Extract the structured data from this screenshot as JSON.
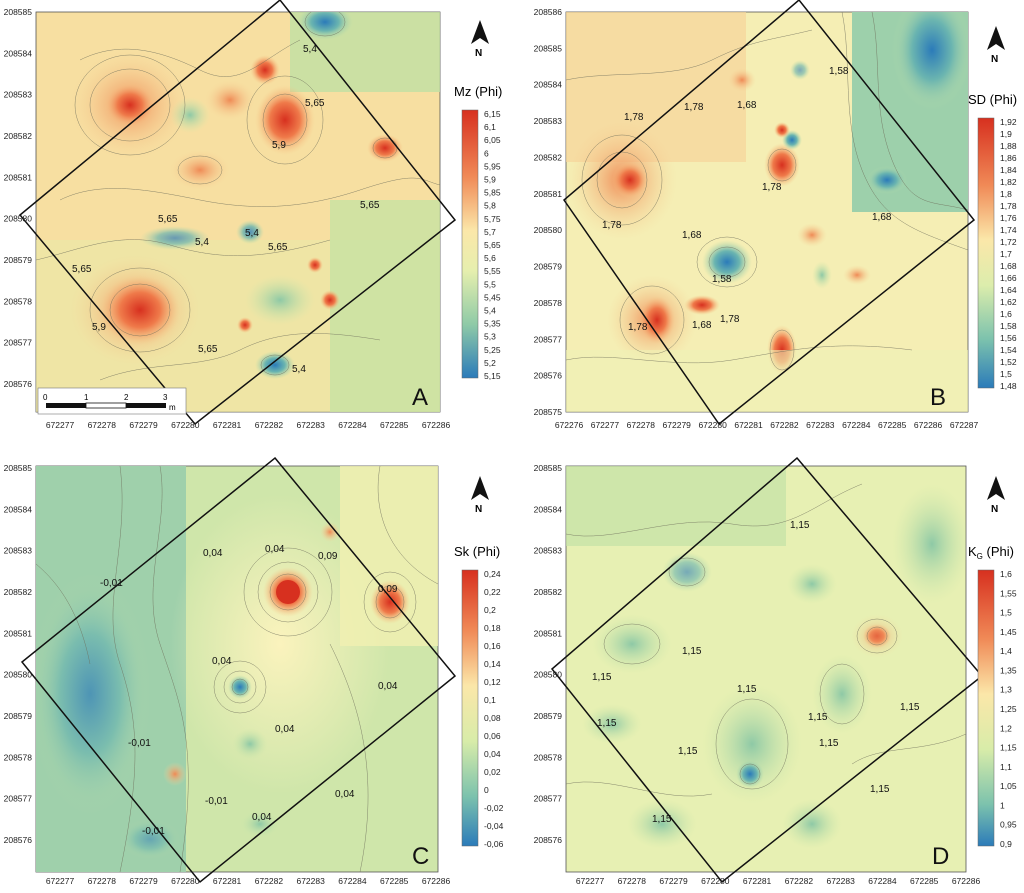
{
  "panels": [
    {
      "id": "A",
      "letter": "A",
      "legend_title": "Mz (Phi)",
      "legend_values": [
        "6,15",
        "6,1",
        "6,05",
        "6",
        "5,95",
        "5,9",
        "5,85",
        "5,8",
        "5,75",
        "5,7",
        "5,65",
        "5,6",
        "5,55",
        "5,5",
        "5,45",
        "5,4",
        "5,35",
        "5,3",
        "5,25",
        "5,2",
        "5,15"
      ],
      "x_ticks": [
        "672277",
        "672278",
        "672279",
        "672280",
        "672281",
        "672282",
        "672283",
        "672284",
        "672285",
        "672286"
      ],
      "y_ticks": [
        "208585",
        "208584",
        "208583",
        "208582",
        "208581",
        "208580",
        "208579",
        "208578",
        "208577",
        "208576"
      ],
      "contour_labels": [
        "5,4",
        "5,65",
        "5,9",
        "5,65",
        "5,65",
        "5,4",
        "5,4",
        "5,65",
        "5,65",
        "5,9",
        "5,65",
        "5,4"
      ],
      "scale_bar": {
        "ticks": [
          "0",
          "1",
          "2",
          "3"
        ],
        "unit": "m"
      }
    },
    {
      "id": "B",
      "letter": "B",
      "legend_title": "SD (Phi)",
      "legend_values": [
        "1,92",
        "1,9",
        "1,88",
        "1,86",
        "1,84",
        "1,82",
        "1,8",
        "1,78",
        "1,76",
        "1,74",
        "1,72",
        "1,7",
        "1,68",
        "1,66",
        "1,64",
        "1,62",
        "1,6",
        "1,58",
        "1,56",
        "1,54",
        "1,52",
        "1,5",
        "1,48"
      ],
      "x_ticks": [
        "672276",
        "672277",
        "672278",
        "672279",
        "672280",
        "672281",
        "672282",
        "672283",
        "672284",
        "672285",
        "672286",
        "672287"
      ],
      "y_ticks": [
        "208586",
        "208585",
        "208584",
        "208583",
        "208582",
        "208581",
        "208580",
        "208579",
        "208578",
        "208577",
        "208576",
        "208575"
      ],
      "contour_labels": [
        "1,78",
        "1,78",
        "1,68",
        "1,58",
        "1,78",
        "1,78",
        "1,68",
        "1,58",
        "1,68",
        "1,78",
        "1,78",
        "1,68"
      ]
    },
    {
      "id": "C",
      "letter": "C",
      "legend_title": "Sk (Phi)",
      "legend_values": [
        "0,24",
        "0,22",
        "0,2",
        "0,18",
        "0,16",
        "0,14",
        "0,12",
        "0,1",
        "0,08",
        "0,06",
        "0,04",
        "0,02",
        "0",
        "-0,02",
        "-0,04",
        "-0,06"
      ],
      "x_ticks": [
        "672277",
        "672278",
        "672279",
        "672280",
        "672281",
        "672282",
        "672283",
        "672284",
        "672285",
        "672286"
      ],
      "y_ticks": [
        "208585",
        "208584",
        "208583",
        "208582",
        "208581",
        "208580",
        "208579",
        "208578",
        "208577",
        "208576"
      ],
      "contour_labels": [
        "-0,01",
        "0,04",
        "0,04",
        "0,09",
        "0,09",
        "0,04",
        "0,04",
        "0,04",
        "-0,01",
        "-0,01",
        "-0,01",
        "0,04",
        "0,04"
      ]
    },
    {
      "id": "D",
      "letter": "D",
      "legend_title": "K",
      "legend_title_sub": "G",
      "legend_title_suffix": " (Phi)",
      "legend_values": [
        "1,6",
        "1,55",
        "1,5",
        "1,45",
        "1,4",
        "1,35",
        "1,3",
        "1,25",
        "1,2",
        "1,15",
        "1,1",
        "1,05",
        "1",
        "0,95",
        "0,9"
      ],
      "x_ticks": [
        "672277",
        "672278",
        "672279",
        "672280",
        "672281",
        "672282",
        "672283",
        "672284",
        "672285",
        "672286"
      ],
      "y_ticks": [
        "208585",
        "208584",
        "208583",
        "208582",
        "208581",
        "208580",
        "208579",
        "208578",
        "208577",
        "208576"
      ],
      "contour_labels": [
        "1,15",
        "1,15",
        "1,15",
        "1,15",
        "1,15",
        "1,15",
        "1,15",
        "1,15",
        "1,15",
        "1,15",
        "1,15"
      ]
    }
  ],
  "north_label": "N",
  "colors": {
    "low": "#2b7bb9",
    "mid": "#f5f0b0",
    "high": "#d7301f"
  }
}
